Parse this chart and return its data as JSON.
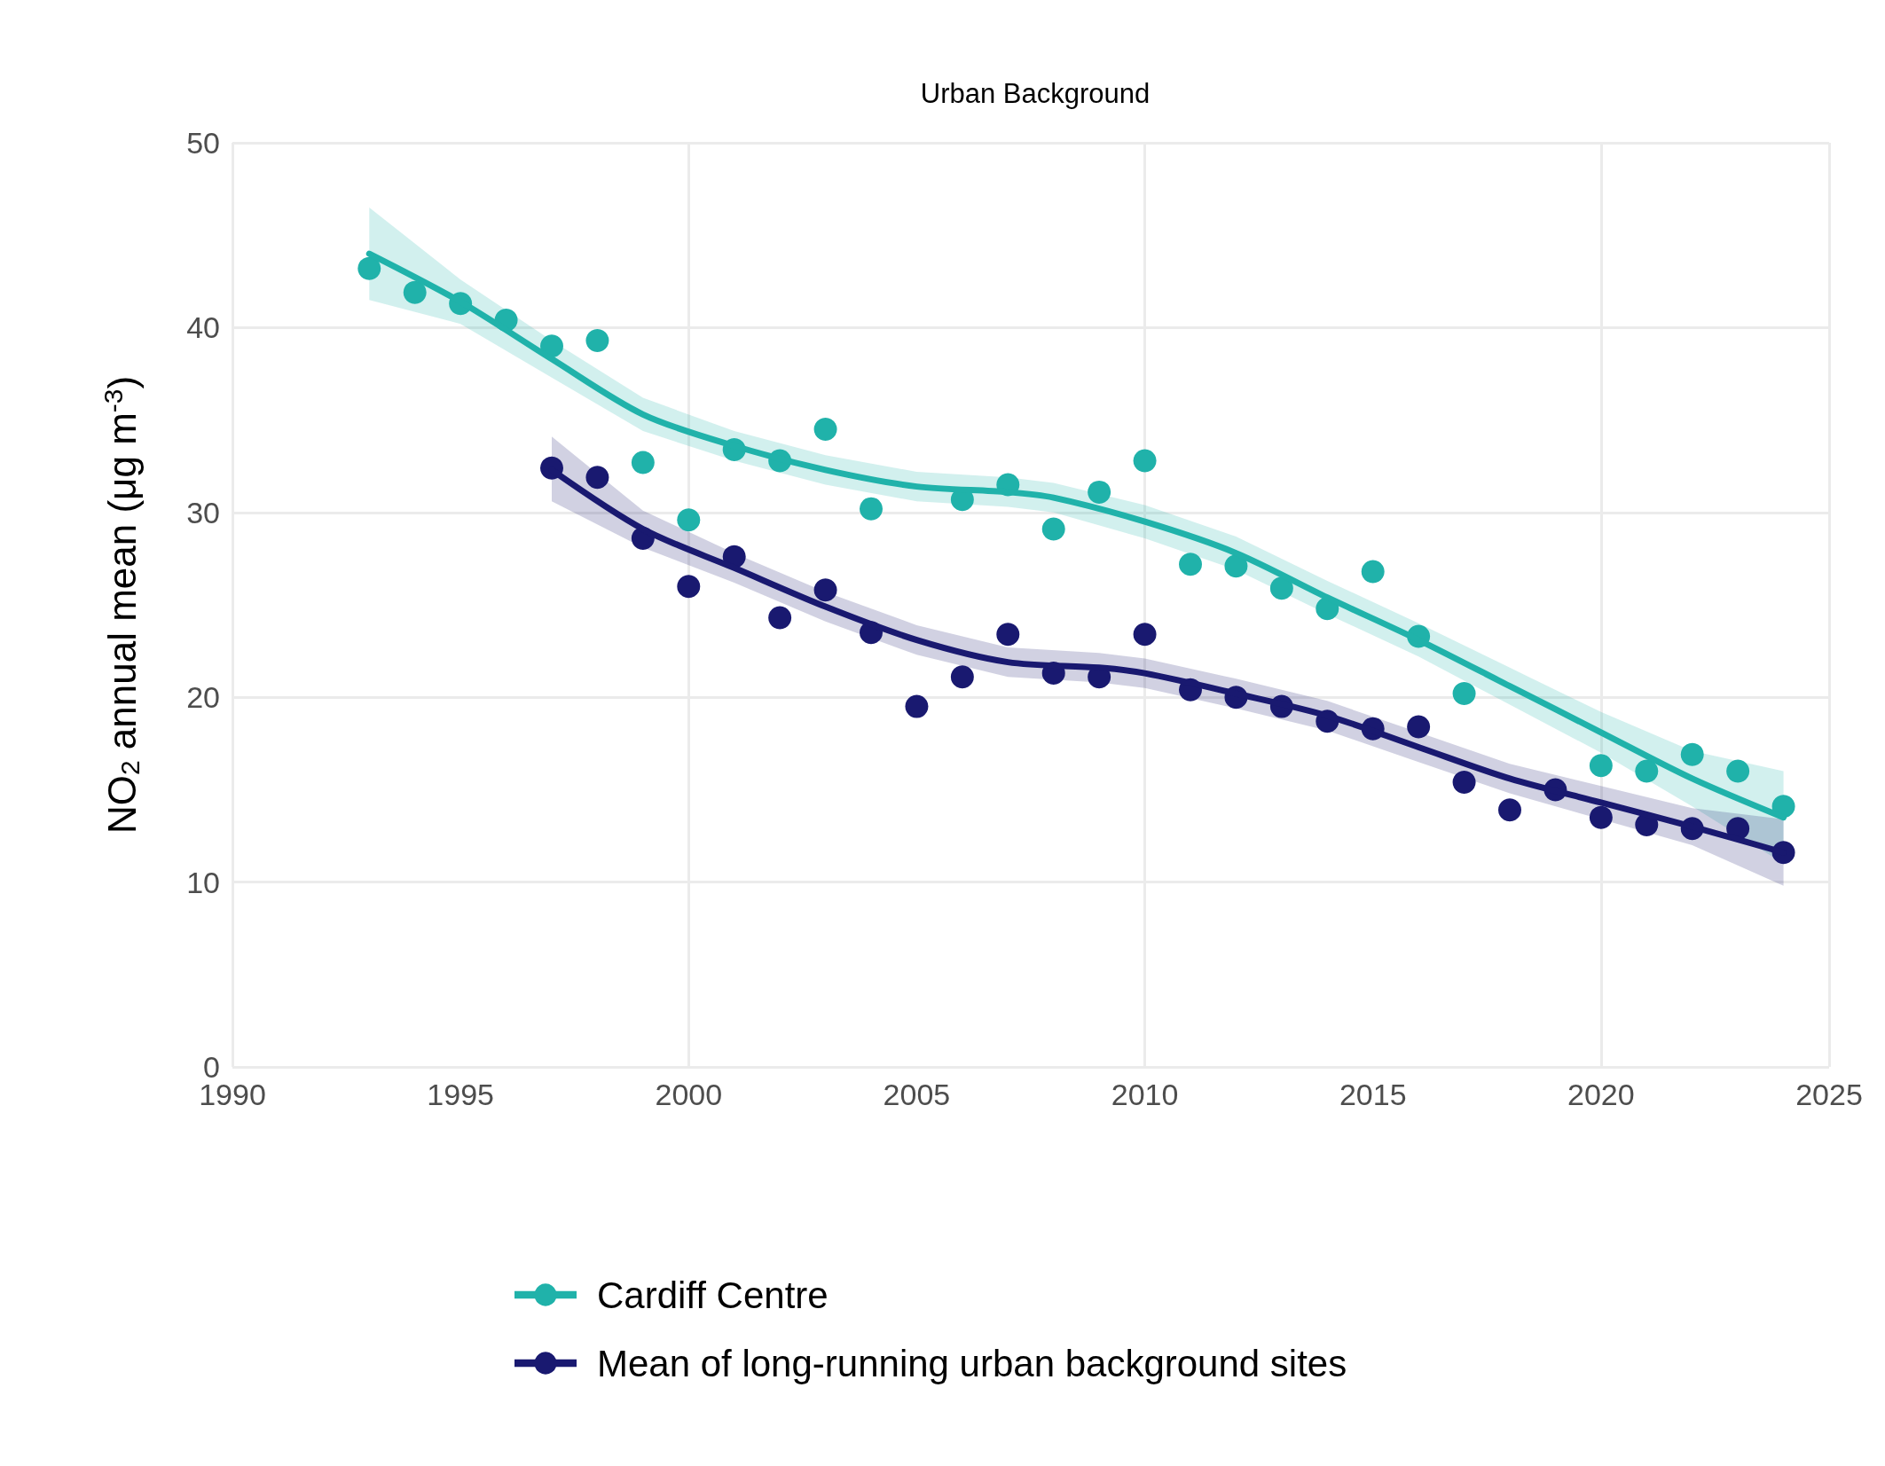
{
  "chart_data": {
    "type": "line",
    "title": "Urban Background",
    "ylabel": "NO$_{2}$ annual mean (μg m$^{-3}$)",
    "xlim": [
      1990,
      2025
    ],
    "xticks": [
      1990,
      1995,
      2000,
      2005,
      2010,
      2015,
      2020,
      2025
    ],
    "ylim": [
      0,
      50
    ],
    "yticks": [
      0,
      10,
      20,
      30,
      40,
      50
    ],
    "grid": true,
    "legend": "bottom",
    "series": [
      {
        "type": "scatter",
        "marker": "circle",
        "color": "#20b2aa",
        "x": [
          1993,
          1994,
          1995,
          1996,
          1997,
          1998,
          1999,
          2000,
          2001,
          2002,
          2003,
          2004,
          2006,
          2007,
          2008,
          2009,
          2010,
          2011,
          2012,
          2013,
          2014,
          2015,
          2016,
          2017,
          2020,
          2021,
          2022,
          2023,
          2024
        ],
        "values": [
          43.2,
          41.9,
          41.3,
          40.4,
          39.0,
          39.3,
          32.7,
          29.6,
          33.4,
          32.8,
          34.5,
          30.2,
          30.7,
          31.5,
          29.1,
          31.1,
          32.8,
          27.2,
          27.1,
          25.9,
          24.8,
          26.8,
          23.3,
          20.2,
          16.3,
          16.0,
          16.9,
          16.0,
          14.1
        ]
      },
      {
        "type": "scatter",
        "marker": "circle",
        "color": "#191970",
        "x": [
          1997,
          1998,
          1999,
          2000,
          2001,
          2002,
          2003,
          2004,
          2005,
          2006,
          2007,
          2008,
          2009,
          2010,
          2011,
          2012,
          2013,
          2014,
          2015,
          2016,
          2017,
          2018,
          2019,
          2020,
          2021,
          2022,
          2023,
          2024
        ],
        "values": [
          32.4,
          31.9,
          28.6,
          26.0,
          27.6,
          24.3,
          25.8,
          23.5,
          19.5,
          21.1,
          23.4,
          21.3,
          21.1,
          23.4,
          20.4,
          20.0,
          19.5,
          18.7,
          18.3,
          18.4,
          15.4,
          13.9,
          15.0,
          13.5,
          13.1,
          12.9,
          12.9,
          11.6
        ]
      },
      {
        "marker": "none",
        "name": "Cardiff Centre",
        "color": "#20b2aa",
        "x": [
          1993,
          1995,
          1997,
          1999,
          2001,
          2003,
          2005,
          2007,
          2008,
          2010,
          2012,
          2014,
          2016,
          2018,
          2020,
          2022,
          2024
        ],
        "values": [
          44.0,
          41.4,
          38.3,
          35.3,
          33.6,
          32.3,
          31.4,
          31.1,
          30.8,
          29.5,
          27.8,
          25.4,
          23.1,
          20.6,
          18.1,
          15.6,
          13.5
        ],
        "lower": [
          41.5,
          40.2,
          37.3,
          34.4,
          32.8,
          31.5,
          30.6,
          30.3,
          30.0,
          28.6,
          26.9,
          24.5,
          22.2,
          19.6,
          17.0,
          14.1,
          11.0
        ],
        "upper": [
          46.5,
          42.6,
          39.3,
          36.2,
          34.4,
          33.1,
          32.2,
          31.9,
          31.6,
          30.4,
          28.7,
          26.3,
          24.0,
          21.6,
          19.2,
          17.1,
          16.0
        ]
      },
      {
        "marker": "none",
        "name": "Mean of long-running urban background sites",
        "color": "#191970",
        "x": [
          1997,
          1999,
          2001,
          2003,
          2005,
          2007,
          2009,
          2010,
          2012,
          2014,
          2016,
          2018,
          2020,
          2022,
          2024
        ],
        "values": [
          32.3,
          29.1,
          27.0,
          24.9,
          23.1,
          21.9,
          21.6,
          21.3,
          20.2,
          19.0,
          17.3,
          15.6,
          14.3,
          13.0,
          11.6
        ],
        "lower": [
          30.6,
          28.1,
          26.2,
          24.1,
          22.3,
          21.1,
          20.8,
          20.5,
          19.4,
          18.2,
          16.5,
          14.8,
          13.4,
          12.0,
          9.8
        ],
        "upper": [
          34.1,
          30.1,
          27.8,
          25.7,
          23.9,
          22.7,
          22.4,
          22.1,
          21.0,
          19.8,
          18.1,
          16.4,
          15.2,
          14.0,
          13.4
        ]
      }
    ]
  }
}
